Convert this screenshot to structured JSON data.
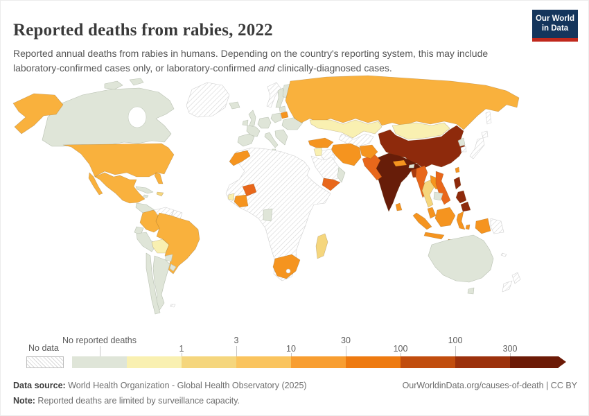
{
  "header": {
    "title": "Reported deaths from rabies, 2022",
    "subtitle_part1": "Reported annual deaths from rabies in humans. Depending on the country's reporting system, this may include laboratory-confirmed cases only, or laboratory-confirmed ",
    "subtitle_italic": "and",
    "subtitle_part2": " clinically-diagnosed cases.",
    "logo": {
      "line1": "Our World",
      "line2": "in Data",
      "bg_color": "#14355c",
      "stripe_color": "#c0281c"
    }
  },
  "legend": {
    "no_data_label": "No data",
    "bins": [
      {
        "color": "#dfe5d8",
        "label": "No reported deaths",
        "row": "top",
        "anchor": "center"
      },
      {
        "color": "#f9f0b1",
        "label": "1",
        "row": "bottom",
        "anchor": "end"
      },
      {
        "color": "#f5d67d",
        "label": "3",
        "row": "top",
        "anchor": "end"
      },
      {
        "color": "#fac45e",
        "label": "10",
        "row": "bottom",
        "anchor": "end"
      },
      {
        "color": "#f89e31",
        "label": "30",
        "row": "top",
        "anchor": "end"
      },
      {
        "color": "#ee7a10",
        "label": "100",
        "row": "bottom",
        "anchor": "end"
      },
      {
        "color": "#c14d0e",
        "label": "100",
        "row": "top",
        "anchor": "end"
      },
      {
        "color": "#9c310c",
        "label": "300",
        "row": "bottom",
        "anchor": "end"
      },
      {
        "color": "#6c1a06",
        "label": "",
        "row": "",
        "anchor": ""
      }
    ]
  },
  "footer": {
    "source_bold": "Data source:",
    "source_rest": " World Health Organization - Global Health Observatory (2025)",
    "link": "OurWorldinData.org/causes-of-death | CC BY",
    "note_bold": "Note:",
    "note_rest": " Reported deaths are limited by surveillance capacity."
  },
  "chart_data": {
    "type": "choropleth_map",
    "title": "Reported deaths from rabies, 2022",
    "legend_labels": [
      "No data",
      "No reported deaths",
      "1",
      "3",
      "10",
      "30",
      "100",
      "100",
      "300"
    ],
    "legend_colors": [
      "hatched",
      "#dfe5d8",
      "#f9f0b1",
      "#f5d67d",
      "#fac45e",
      "#f89e31",
      "#ee7a10",
      "#c14d0e",
      "#9c310c",
      "#6c1a06"
    ],
    "country_categories": {
      "no_data_hatched": [
        "Greenland",
        "Venezuela",
        "Guyana/Suriname",
        "Norway",
        "Japan",
        "South Korea",
        "Iraq",
        "Saudi Arabia",
        "Central Asia (Uzbekistan/Turkmenistan)",
        "Most of Africa",
        "Papua New Guinea",
        "New Zealand"
      ],
      "no_reported_deaths": [
        "Canada",
        "Central America",
        "Cuba",
        "Ecuador",
        "Peru",
        "Chile",
        "Argentina",
        "Paraguay",
        "Uruguay",
        "Iceland",
        "United Kingdom",
        "Ireland",
        "Sweden",
        "Finland",
        "France",
        "Spain/Portugal",
        "Germany",
        "Poland",
        "Italy",
        "Balkans",
        "Ukraine",
        "Oman",
        "Gabon",
        "Cambodia",
        "North Korea",
        "Australia"
      ],
      "cream_low": [
        "Kazakhstan",
        "Mongolia",
        "Bolivia",
        "Syria",
        "Sierra Leone"
      ],
      "gold": [
        "Madagascar",
        "Thailand",
        "Haiti"
      ],
      "amber": [
        "United States",
        "Mexico",
        "Colombia",
        "Brazil",
        "Russia"
      ],
      "orange": [
        "Turkey",
        "Iran",
        "Afghanistan",
        "Belarus",
        "Morocco",
        "Cote d'Ivoire",
        "South Africa",
        "Malaysia",
        "Indonesia",
        "Laos",
        "Sri Lanka",
        "Nepal",
        "Taiwan"
      ],
      "deep_orange": [
        "Pakistan",
        "Yemen",
        "Burkina Faso",
        "Myanmar",
        "Vietnam"
      ],
      "brick": [
        "Bangladesh"
      ],
      "dark_brick": [
        "China",
        "Philippines"
      ],
      "darkest": [
        "India"
      ]
    }
  },
  "map": {
    "palette": {
      "sage": "#dfe5d8",
      "cream": "#f9f0b1",
      "gold": "#f5d67d",
      "amber": "#f9b13d",
      "orange": "#f5941f",
      "deep_orange": "#e8671b",
      "brick": "#a83a0e",
      "dark_brick": "#8e2a0c",
      "darkest": "#671d09",
      "hatch": "hatch"
    },
    "countries": {
      "greenland": "hatch",
      "canada": "sage",
      "arctic-islands": "sage",
      "alaska": "amber",
      "usa": "amber",
      "mexico": "amber",
      "central-america": "sage",
      "cuba": "sage",
      "jamaica": "sage",
      "hispaniola": "gold",
      "colombia": "amber",
      "venezuela": "hatch",
      "guyanas": "hatch",
      "ecuador": "sage",
      "peru": "sage",
      "bolivia": "cream",
      "brazil": "amber",
      "paraguay": "sage",
      "uruguay": "sage",
      "argentina": "sage",
      "chile": "sage",
      "falklands": "hatch",
      "iceland": "sage",
      "uk": "sage",
      "ireland": "sage",
      "norway": "hatch",
      "sweden": "sage",
      "finland": "sage",
      "baltics": "sage",
      "belarus": "orange",
      "poland": "sage",
      "germany": "sage",
      "france": "sage",
      "iberia": "sage",
      "italy": "sage",
      "balkans": "sage",
      "ukraine": "sage",
      "russia": "amber",
      "sakhalin": "hatch",
      "kazakhstan": "cream",
      "central-asia": "hatch",
      "mongolia": "cream",
      "china": "dark_brick",
      "taiwan": "orange",
      "north-korea": "sage",
      "south-korea": "hatch",
      "japan": "hatch",
      "india": "darkest",
      "nepal": "orange",
      "bhutan": "sage",
      "bangladesh": "brick",
      "sri-lanka": "orange",
      "pakistan": "deep_orange",
      "afghanistan": "orange",
      "iran": "orange",
      "turkey": "orange",
      "syria": "cream",
      "iraq": "hatch",
      "saudi-arabia": "hatch",
      "yemen": "deep_orange",
      "oman": "sage",
      "africa-nodata": "hatch",
      "morocco": "orange",
      "sierra-leone": "cream",
      "cote-divoire": "orange",
      "burkina-faso": "deep_orange",
      "gabon": "sage",
      "south-africa": "orange",
      "madagascar": "gold",
      "myanmar": "deep_orange",
      "thailand": "gold",
      "laos": "orange",
      "vietnam": "deep_orange",
      "cambodia": "sage",
      "malaysia": "orange",
      "indonesia": "orange",
      "indonesian-papua": "orange",
      "papua-new-guinea": "hatch",
      "philippines": "dark_brick",
      "australia": "sage",
      "tasmania": "sage",
      "new-zealand": "hatch",
      "fiji": "hatch"
    }
  }
}
